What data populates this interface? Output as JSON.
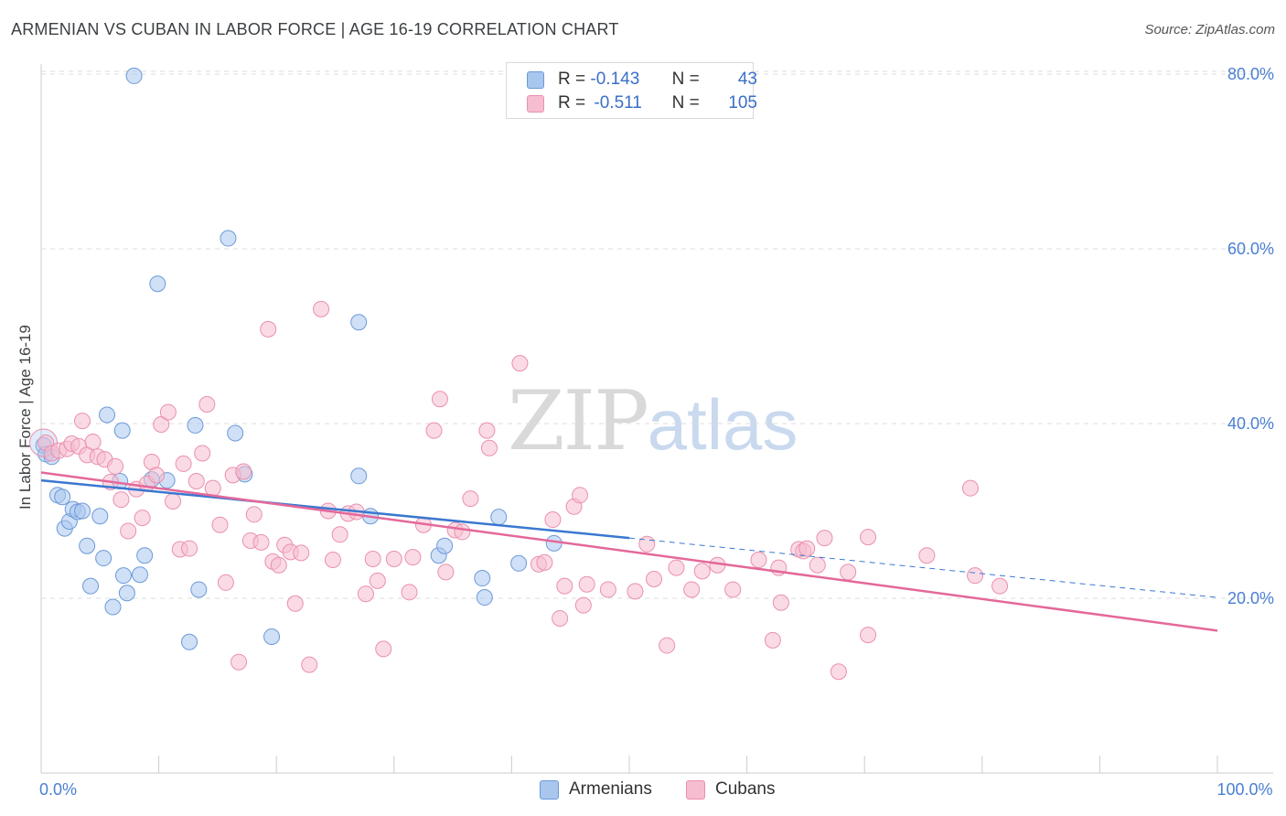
{
  "header": {
    "title": "ARMENIAN VS CUBAN IN LABOR FORCE | AGE 16-19 CORRELATION CHART",
    "source": "Source: ZipAtlas.com"
  },
  "watermark": {
    "zip": "ZIP",
    "atlas": "atlas"
  },
  "legend": {
    "armenians": {
      "r_label": "R =",
      "r_value": "-0.143",
      "n_label": "N =",
      "n_value": "43"
    },
    "cubans": {
      "r_label": "R =",
      "r_value": "-0.511",
      "n_label": "N =",
      "n_value": "105"
    }
  },
  "bottom_legend": {
    "armenians": "Armenians",
    "cubans": "Cubans"
  },
  "colors": {
    "armenian_fill": "#a9c6ee",
    "armenian_stroke": "#6c9ad8",
    "armenian_line": "#3a78d0",
    "cuban_fill": "#f6bdd0",
    "cuban_stroke": "#eb8fae",
    "cuban_line": "#e4689a",
    "tick_text": "#4a7fd4",
    "grid": "#dddddd"
  },
  "chart_data": {
    "type": "scatter",
    "title": "ARMENIAN VS CUBAN IN LABOR FORCE | AGE 16-19 CORRELATION CHART",
    "xlabel": "",
    "ylabel": "In Labor Force | Age 16-19",
    "xlim": [
      0,
      100
    ],
    "ylim": [
      0,
      82
    ],
    "x_tick_labels": [
      {
        "value": 0,
        "label": "0.0%"
      },
      {
        "value": 100,
        "label": "100.0%"
      }
    ],
    "y_tick_labels": [
      {
        "value": 20,
        "label": "20.0%"
      },
      {
        "value": 40,
        "label": "40.0%"
      },
      {
        "value": 60,
        "label": "60.0%"
      },
      {
        "value": 80,
        "label": "80.0%"
      }
    ],
    "x_minor_ticks": [
      10,
      20,
      30,
      40,
      50,
      60,
      70,
      80,
      90,
      100
    ],
    "grid": true,
    "series": [
      {
        "name": "Armenians",
        "r": -0.143,
        "n": 43,
        "trend": {
          "x0": 0,
          "y0": 33.5,
          "x1": 50,
          "y1": 26.9,
          "dashed_to_x": 100,
          "dashed_to_y": 20.1
        },
        "points": [
          [
            0.2,
            37.5
          ],
          [
            0.4,
            36.5
          ],
          [
            0.9,
            36.2
          ],
          [
            1.4,
            31.8
          ],
          [
            1.8,
            31.6
          ],
          [
            2.0,
            28.0
          ],
          [
            2.4,
            28.8
          ],
          [
            2.7,
            30.2
          ],
          [
            3.1,
            29.9
          ],
          [
            3.5,
            30.0
          ],
          [
            3.9,
            26.0
          ],
          [
            4.2,
            21.4
          ],
          [
            5.0,
            29.4
          ],
          [
            5.3,
            24.6
          ],
          [
            5.6,
            41.0
          ],
          [
            6.1,
            19.0
          ],
          [
            6.7,
            33.4
          ],
          [
            6.9,
            39.2
          ],
          [
            7.0,
            22.6
          ],
          [
            7.3,
            20.6
          ],
          [
            7.9,
            79.8
          ],
          [
            8.4,
            22.7
          ],
          [
            8.8,
            24.9
          ],
          [
            9.4,
            33.6
          ],
          [
            9.9,
            56.0
          ],
          [
            10.7,
            33.5
          ],
          [
            12.6,
            15.0
          ],
          [
            13.1,
            39.8
          ],
          [
            13.4,
            21.0
          ],
          [
            15.9,
            61.2
          ],
          [
            16.5,
            38.9
          ],
          [
            17.3,
            34.2
          ],
          [
            19.6,
            15.6
          ],
          [
            27.0,
            51.6
          ],
          [
            27.0,
            34.0
          ],
          [
            28.0,
            29.4
          ],
          [
            33.8,
            24.9
          ],
          [
            34.3,
            26.0
          ],
          [
            37.5,
            22.3
          ],
          [
            37.7,
            20.1
          ],
          [
            38.9,
            29.3
          ],
          [
            40.6,
            24.0
          ],
          [
            43.6,
            26.3
          ]
        ]
      },
      {
        "name": "Cubans",
        "r": -0.511,
        "n": 105,
        "trend": {
          "x0": 0,
          "y0": 34.4,
          "x1": 100,
          "y1": 16.3
        },
        "points": [
          [
            0.4,
            37.8
          ],
          [
            0.9,
            36.6
          ],
          [
            1.5,
            36.9
          ],
          [
            2.2,
            37.1
          ],
          [
            2.6,
            37.7
          ],
          [
            3.2,
            37.4
          ],
          [
            3.5,
            40.3
          ],
          [
            3.9,
            36.4
          ],
          [
            4.4,
            37.9
          ],
          [
            4.8,
            36.2
          ],
          [
            5.4,
            35.9
          ],
          [
            5.9,
            33.3
          ],
          [
            6.3,
            35.1
          ],
          [
            6.8,
            31.3
          ],
          [
            7.4,
            27.7
          ],
          [
            8.1,
            32.5
          ],
          [
            8.6,
            29.2
          ],
          [
            9.0,
            33.1
          ],
          [
            9.4,
            35.6
          ],
          [
            9.8,
            34.1
          ],
          [
            10.2,
            39.9
          ],
          [
            10.8,
            41.3
          ],
          [
            11.2,
            31.1
          ],
          [
            11.8,
            25.6
          ],
          [
            12.1,
            35.4
          ],
          [
            12.6,
            25.7
          ],
          [
            13.2,
            33.4
          ],
          [
            13.7,
            36.6
          ],
          [
            14.1,
            42.2
          ],
          [
            14.6,
            32.6
          ],
          [
            15.2,
            28.4
          ],
          [
            15.7,
            21.8
          ],
          [
            16.3,
            34.1
          ],
          [
            16.8,
            12.7
          ],
          [
            17.2,
            34.5
          ],
          [
            17.8,
            26.6
          ],
          [
            18.1,
            29.6
          ],
          [
            18.7,
            26.4
          ],
          [
            19.3,
            50.8
          ],
          [
            19.7,
            24.2
          ],
          [
            20.2,
            23.8
          ],
          [
            20.7,
            26.1
          ],
          [
            21.2,
            25.3
          ],
          [
            21.6,
            19.4
          ],
          [
            22.1,
            25.2
          ],
          [
            22.8,
            12.4
          ],
          [
            23.8,
            53.1
          ],
          [
            24.4,
            30.0
          ],
          [
            24.8,
            24.4
          ],
          [
            25.4,
            27.3
          ],
          [
            26.1,
            29.7
          ],
          [
            26.8,
            29.9
          ],
          [
            27.6,
            20.5
          ],
          [
            28.2,
            24.5
          ],
          [
            28.6,
            22.0
          ],
          [
            29.1,
            14.2
          ],
          [
            30.0,
            24.5
          ],
          [
            31.3,
            20.7
          ],
          [
            31.6,
            24.7
          ],
          [
            32.5,
            28.4
          ],
          [
            33.4,
            39.2
          ],
          [
            33.9,
            42.8
          ],
          [
            34.4,
            23.0
          ],
          [
            35.2,
            27.8
          ],
          [
            35.8,
            27.6
          ],
          [
            36.5,
            31.4
          ],
          [
            37.9,
            39.2
          ],
          [
            38.1,
            37.2
          ],
          [
            40.7,
            46.9
          ],
          [
            42.3,
            23.9
          ],
          [
            42.8,
            24.1
          ],
          [
            43.5,
            29.0
          ],
          [
            44.1,
            17.7
          ],
          [
            44.5,
            21.4
          ],
          [
            45.3,
            30.5
          ],
          [
            45.8,
            31.8
          ],
          [
            46.1,
            19.2
          ],
          [
            46.4,
            21.6
          ],
          [
            48.2,
            21.0
          ],
          [
            50.5,
            20.8
          ],
          [
            51.5,
            26.2
          ],
          [
            52.1,
            22.2
          ],
          [
            53.2,
            14.6
          ],
          [
            54.0,
            23.5
          ],
          [
            55.3,
            21.0
          ],
          [
            56.2,
            23.1
          ],
          [
            57.5,
            23.8
          ],
          [
            58.8,
            21.0
          ],
          [
            61.0,
            24.4
          ],
          [
            62.2,
            15.2
          ],
          [
            62.9,
            19.5
          ],
          [
            62.7,
            23.5
          ],
          [
            64.4,
            25.6
          ],
          [
            64.8,
            25.4
          ],
          [
            65.1,
            25.7
          ],
          [
            66.0,
            23.8
          ],
          [
            66.6,
            26.9
          ],
          [
            67.8,
            11.6
          ],
          [
            68.6,
            23.0
          ],
          [
            70.3,
            15.8
          ],
          [
            70.3,
            27.0
          ],
          [
            75.3,
            24.9
          ],
          [
            79.0,
            32.6
          ],
          [
            79.4,
            22.6
          ],
          [
            81.5,
            21.4
          ]
        ]
      }
    ]
  }
}
